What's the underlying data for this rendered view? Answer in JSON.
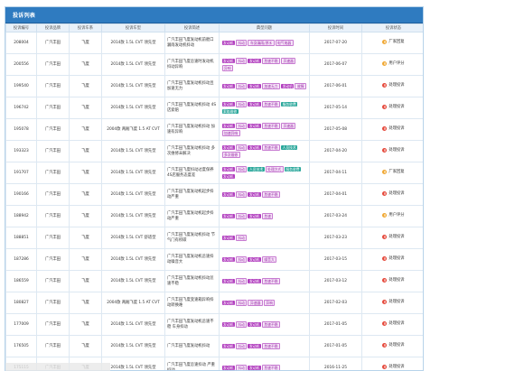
{
  "panel": {
    "title": "投诉列表"
  },
  "columns": [
    "投诉编号",
    "投诉品牌",
    "投诉车系",
    "投诉车型",
    "投诉简述",
    "典型问题",
    "投诉时间",
    "投诉状态"
  ],
  "rows": [
    {
      "id": "208004",
      "brand": "广汽丰田",
      "series": "飞度",
      "model": "2014款 1.5L CVT 领先型",
      "desc": "广汽丰田飞度发动机前舱口漏雨发动机抖动",
      "tags": [
        {
          "t": "发动机",
          "k": "purple"
        },
        {
          "t": "抖动",
          "k": "outline"
        },
        {
          "t": "车身漏雨/渗水",
          "k": "outline"
        },
        {
          "t": "电气电器",
          "k": "outline"
        }
      ],
      "date": "2017-07-20",
      "status": "厂家回复",
      "status_color": "orange"
    },
    {
      "id": "200556",
      "brand": "广汽丰田",
      "series": "飞度",
      "model": "2014款 1.5L CVT 领先型",
      "desc": "广汽丰田飞度怠速时发动机抖动异响",
      "tags": [
        {
          "t": "发动机",
          "k": "purple"
        },
        {
          "t": "抖动",
          "k": "outline"
        },
        {
          "t": "发动机",
          "k": "purple"
        },
        {
          "t": "怠速不稳",
          "k": "outline"
        },
        {
          "t": "异速器",
          "k": "outline"
        },
        {
          "t": "异响",
          "k": "outline"
        }
      ],
      "date": "2017-06-07",
      "status": "用户评分",
      "status_color": "orange"
    },
    {
      "id": "199540",
      "brand": "广汽丰田",
      "series": "飞度",
      "model": "2014款 1.5L CVT 领先型",
      "desc": "广汽丰田飞度发动机抖动且加速无力",
      "tags": [
        {
          "t": "发动机",
          "k": "purple"
        },
        {
          "t": "抖动",
          "k": "outline"
        },
        {
          "t": "发动机",
          "k": "purple"
        },
        {
          "t": "加速无力",
          "k": "outline"
        },
        {
          "t": "发动机",
          "k": "purple"
        },
        {
          "t": "故障",
          "k": "outline"
        }
      ],
      "date": "2017-06-01",
      "status": "处理投诉",
      "status_color": "red"
    },
    {
      "id": "196742",
      "brand": "广汽丰田",
      "series": "飞度",
      "model": "2014款 1.5L CVT 领先型",
      "desc": "广汽丰田飞度发动机抖动 4S店索赔",
      "tags": [
        {
          "t": "发动机",
          "k": "purple"
        },
        {
          "t": "抖动",
          "k": "outline"
        },
        {
          "t": "发动机",
          "k": "purple"
        },
        {
          "t": "怠速不稳",
          "k": "outline"
        },
        {
          "t": "服务收费",
          "k": "green"
        },
        {
          "t": "索赔维修",
          "k": "green"
        }
      ],
      "date": "2017-05-14",
      "status": "处理投诉",
      "status_color": "red"
    },
    {
      "id": "195078",
      "brand": "广汽丰田",
      "series": "飞度",
      "model": "2004款 两厢飞度 1.5 AT CVT",
      "desc": "广汽丰田飞度发动机抖动 加速有异响",
      "tags": [
        {
          "t": "发动机",
          "k": "purple"
        },
        {
          "t": "抖动",
          "k": "outline"
        },
        {
          "t": "发动机",
          "k": "purple"
        },
        {
          "t": "怠速不稳",
          "k": "outline"
        },
        {
          "t": "异速器",
          "k": "outline"
        },
        {
          "t": "加速异响",
          "k": "outline"
        }
      ],
      "date": "2017-05-08",
      "status": "处理投诉",
      "status_color": "red"
    },
    {
      "id": "193323",
      "brand": "广汽丰田",
      "series": "飞度",
      "model": "2014款 1.5L CVT 领先型",
      "desc": "广汽丰田飞度发动机抖动 多次维修未解决",
      "tags": [
        {
          "t": "发动机",
          "k": "purple"
        },
        {
          "t": "抖动",
          "k": "outline"
        },
        {
          "t": "发动机",
          "k": "purple"
        },
        {
          "t": "怠速不稳",
          "k": "outline"
        },
        {
          "t": "人员技术",
          "k": "green"
        },
        {
          "t": "多次维修",
          "k": "outline"
        }
      ],
      "date": "2017-04-20",
      "status": "处理投诉",
      "status_color": "red"
    },
    {
      "id": "191707",
      "brand": "广汽丰田",
      "series": "飞度",
      "model": "2014款 1.5L CVT 领先型",
      "desc": "广汽丰田飞度抖动过度保养 4S店服务态度差",
      "tags": [
        {
          "t": "发动机",
          "k": "purple"
        },
        {
          "t": "抖动",
          "k": "outline"
        },
        {
          "t": "人员技术",
          "k": "green"
        },
        {
          "t": "处理方式",
          "k": "outline"
        },
        {
          "t": "服务收费",
          "k": "green"
        },
        {
          "t": "发动机",
          "k": "purple"
        }
      ],
      "date": "2017-04-11",
      "status": "厂家回复",
      "status_color": "orange"
    },
    {
      "id": "190166",
      "brand": "广汽丰田",
      "series": "飞度",
      "model": "2014款 1.5L CVT 领先型",
      "desc": "广汽丰田飞度发动机起步抖动严重",
      "tags": [
        {
          "t": "发动机",
          "k": "purple"
        },
        {
          "t": "抖动",
          "k": "outline"
        },
        {
          "t": "发动机",
          "k": "purple"
        },
        {
          "t": "怠速不稳",
          "k": "outline"
        }
      ],
      "date": "2017-04-01",
      "status": "处理投诉",
      "status_color": "red"
    },
    {
      "id": "188942",
      "brand": "广汽丰田",
      "series": "飞度",
      "model": "2014款 1.5L CVT 领先型",
      "desc": "广汽丰田飞度发动机起步抖动严重",
      "tags": [
        {
          "t": "发动机",
          "k": "purple"
        },
        {
          "t": "抖动",
          "k": "outline"
        },
        {
          "t": "发动机",
          "k": "purple"
        },
        {
          "t": "怠速",
          "k": "outline"
        }
      ],
      "date": "2017-03-24",
      "status": "用户评分",
      "status_color": "orange"
    },
    {
      "id": "188851",
      "brand": "广汽丰田",
      "series": "飞度",
      "model": "2014款 1.5L CVT 舒适型",
      "desc": "广汽丰田飞度发动机抖动 节气门有积碳",
      "tags": [
        {
          "t": "发动机",
          "k": "purple"
        },
        {
          "t": "抖动",
          "k": "outline"
        }
      ],
      "date": "2017-03-23",
      "status": "处理投诉",
      "status_color": "red"
    },
    {
      "id": "187286",
      "brand": "广汽丰田",
      "series": "飞度",
      "model": "2014款 1.5L CVT 领先型",
      "desc": "广汽丰田飞度发动机怠速抖动噪音大",
      "tags": [
        {
          "t": "发动机",
          "k": "purple"
        },
        {
          "t": "抖动",
          "k": "outline"
        },
        {
          "t": "发动机",
          "k": "purple"
        },
        {
          "t": "噪音大",
          "k": "outline"
        }
      ],
      "date": "2017-03-15",
      "status": "处理投诉",
      "status_color": "red"
    },
    {
      "id": "186559",
      "brand": "广汽丰田",
      "series": "飞度",
      "model": "2014款 1.5L CVT 领先型",
      "desc": "广汽丰田飞度发动机抖动怠速不稳",
      "tags": [
        {
          "t": "发动机",
          "k": "purple"
        },
        {
          "t": "抖动",
          "k": "outline"
        },
        {
          "t": "发动机",
          "k": "purple"
        },
        {
          "t": "怠速不稳",
          "k": "outline"
        }
      ],
      "date": "2017-03-12",
      "status": "处理投诉",
      "status_color": "red"
    },
    {
      "id": "180827",
      "brand": "广汽丰田",
      "series": "飞度",
      "model": "2004款 两厢飞度 1.5 AT CVT",
      "desc": "广汽丰田飞度变速箱异响抖动转换难",
      "tags": [
        {
          "t": "发动机",
          "k": "purple"
        },
        {
          "t": "抖动",
          "k": "outline"
        },
        {
          "t": "异速器",
          "k": "outline"
        },
        {
          "t": "异响",
          "k": "outline"
        }
      ],
      "date": "2017-02-03",
      "status": "处理投诉",
      "status_color": "red"
    },
    {
      "id": "177009",
      "brand": "广汽丰田",
      "series": "飞度",
      "model": "2014款 1.5L CVT 领先型",
      "desc": "广汽丰田飞度发动机怠速不稳 车身抖动",
      "tags": [
        {
          "t": "发动机",
          "k": "purple"
        },
        {
          "t": "抖动",
          "k": "outline"
        },
        {
          "t": "发动机",
          "k": "purple"
        },
        {
          "t": "怠速不稳",
          "k": "outline"
        }
      ],
      "date": "2017-01-05",
      "status": "处理投诉",
      "status_color": "red"
    },
    {
      "id": "176505",
      "brand": "广汽丰田",
      "series": "飞度",
      "model": "2014款 1.5L CVT 领先型",
      "desc": "广汽丰田飞度发动机抖动",
      "tags": [
        {
          "t": "发动机",
          "k": "purple"
        },
        {
          "t": "抖动",
          "k": "outline"
        },
        {
          "t": "发动机",
          "k": "purple"
        },
        {
          "t": "怠速不稳",
          "k": "outline"
        }
      ],
      "date": "2017-01-05",
      "status": "处理投诉",
      "status_color": "red"
    },
    {
      "id": "175115",
      "brand": "广汽丰田",
      "series": "飞度",
      "model": "2014款 1.5L CVT 领先型",
      "desc": "广汽丰田飞度怠速抖动 严重抖动",
      "tags": [
        {
          "t": "发动机",
          "k": "purple"
        },
        {
          "t": "抖动",
          "k": "outline"
        },
        {
          "t": "发动机",
          "k": "purple"
        },
        {
          "t": "怠速不稳",
          "k": "outline"
        }
      ],
      "date": "2016-11-25",
      "status": "处理投诉",
      "status_color": "red"
    }
  ]
}
